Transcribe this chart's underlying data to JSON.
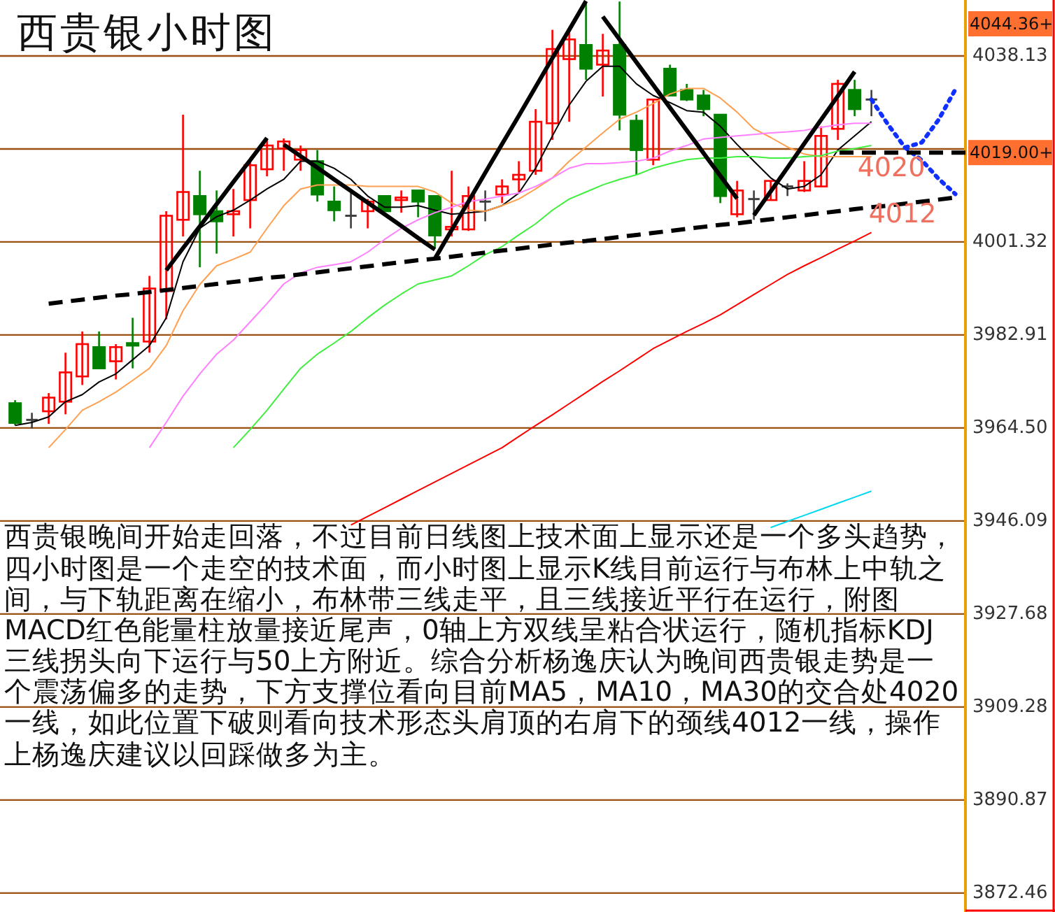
{
  "chart_data": {
    "type": "candlestick",
    "title": "西贵银小时图",
    "categories": [
      null,
      null,
      null,
      null,
      null,
      null,
      null,
      null,
      null,
      null,
      null,
      null,
      null,
      null,
      null,
      null,
      null,
      null,
      null,
      null,
      null,
      null,
      null,
      null,
      null,
      null,
      null,
      null,
      null,
      null,
      null,
      null,
      null,
      null,
      null,
      null,
      null,
      null,
      null,
      null,
      null,
      null,
      null,
      null,
      null,
      null,
      null,
      null,
      null,
      null,
      null,
      null,
      null,
      null,
      null,
      null,
      null
    ],
    "ohlc": [
      [
        3969.4,
        3970.0,
        3965.0,
        3965.5
      ],
      [
        3966.1,
        3967.5,
        3964.4,
        3966.1
      ],
      [
        3967.8,
        3971.4,
        3965.3,
        3970.5
      ],
      [
        3969.7,
        3979.4,
        3967.2,
        3975.5
      ],
      [
        3974.7,
        3983.6,
        3973.0,
        3981.1
      ],
      [
        3980.5,
        3983.6,
        3976.2,
        3976.3
      ],
      [
        3977.7,
        3981.1,
        3974.1,
        3980.5
      ],
      [
        3981.3,
        3986.3,
        3976.3,
        3980.8
      ],
      [
        3981.6,
        3994.6,
        3979.4,
        3992.1
      ],
      [
        3991.6,
        4007.4,
        3986.0,
        4006.5
      ],
      [
        4005.7,
        4026.5,
        4002.4,
        4011.2
      ],
      [
        4010.4,
        4015.4,
        3996.3,
        4006.8
      ],
      [
        4007.4,
        4011.5,
        3999.0,
        4005.4
      ],
      [
        4006.8,
        4011.8,
        4002.4,
        4007.4
      ],
      [
        4009.6,
        4017.9,
        4004.0,
        4016.5
      ],
      [
        4015.7,
        4021.8,
        4014.3,
        4020.4
      ],
      [
        4019.8,
        4021.8,
        4015.4,
        4021.2
      ],
      [
        4017.6,
        4020.4,
        4015.4,
        4019.5
      ],
      [
        4017.3,
        4019.5,
        4009.3,
        4010.7
      ],
      [
        4009.3,
        4012.3,
        4005.4,
        4007.6
      ],
      [
        4006.5,
        4011.0,
        4004.0,
        4006.5
      ],
      [
        4007.4,
        4009.8,
        4004.0,
        4009.3
      ],
      [
        4010.4,
        4010.4,
        4007.4,
        4007.4
      ],
      [
        4009.6,
        4011.5,
        4007.1,
        4010.1
      ],
      [
        4011.5,
        4011.5,
        4006.2,
        4009.3
      ],
      [
        4010.4,
        4010.4,
        4000.2,
        4002.6
      ],
      [
        4003.8,
        4015.4,
        4002.4,
        4004.3
      ],
      [
        4003.8,
        4012.3,
        4003.5,
        4010.4
      ],
      [
        4009.3,
        4011.5,
        4005.4,
        4009.3
      ],
      [
        4010.7,
        4013.7,
        4009.0,
        4012.3
      ],
      [
        4013.7,
        4017.3,
        4011.2,
        4014.6
      ],
      [
        4015.4,
        4027.6,
        4014.6,
        4025.1
      ],
      [
        4024.8,
        4043.3,
        4021.5,
        4039.5
      ],
      [
        4037.5,
        4043.1,
        4025.1,
        4041.4
      ],
      [
        4040.3,
        4048.9,
        4033.4,
        4035.6
      ],
      [
        4036.4,
        4042.5,
        4030.1,
        4039.2
      ],
      [
        4040.3,
        4048.9,
        4023.4,
        4026.5
      ],
      [
        4025.3,
        4026.5,
        4014.6,
        4019.5
      ],
      [
        4017.6,
        4029.5,
        4016.5,
        4029.5
      ],
      [
        4035.6,
        4036.4,
        4030.3,
        4030.3
      ],
      [
        4031.4,
        4032.6,
        4029.2,
        4029.5
      ],
      [
        4030.3,
        4031.4,
        4026.2,
        4027.6
      ],
      [
        4026.5,
        4026.5,
        4009.0,
        4010.4
      ],
      [
        4006.8,
        4013.4,
        4006.2,
        4011.5
      ],
      [
        4009.8,
        4011.5,
        4005.7,
        4009.8
      ],
      [
        4009.6,
        4013.4,
        4009.6,
        4013.4
      ],
      [
        4012.3,
        4012.9,
        4010.4,
        4012.3
      ],
      [
        4011.5,
        4017.3,
        4011.2,
        4013.4
      ],
      [
        4012.3,
        4024.2,
        4012.3,
        4022.3
      ],
      [
        4023.7,
        4033.4,
        4021.5,
        4032.6
      ],
      [
        4031.4,
        4033.4,
        4026.2,
        4027.6
      ],
      [
        4029.5,
        4031.4,
        4026.2,
        4029.5
      ],
      null,
      null,
      null,
      null,
      null
    ],
    "colors": [
      "#008000",
      "#404040",
      "#ff0000",
      "#ff0000",
      "#ff0000",
      "#008000",
      "#ff0000",
      "#008000",
      "#ff0000",
      "#ff0000",
      "#ff0000",
      "#008000",
      "#008000",
      "#ff0000",
      "#ff0000",
      "#ff0000",
      "#ff0000",
      "#ff0000",
      "#008000",
      "#008000",
      "#404040",
      "#ff0000",
      "#008000",
      "#ff0000",
      "#008000",
      "#008000",
      "#ff0000",
      "#ff0000",
      "#404040",
      "#ff0000",
      "#ff0000",
      "#ff0000",
      "#ff0000",
      "#ff0000",
      "#008000",
      "#ff0000",
      "#008000",
      "#008000",
      "#ff0000",
      "#008000",
      "#008000",
      "#008000",
      "#008000",
      "#ff0000",
      "#404040",
      "#ff0000",
      "#404040",
      "#ff0000",
      "#ff0000",
      "#ff0000",
      "#008000",
      "#404040",
      null,
      null,
      null,
      null,
      null
    ],
    "ylim": [
      3868.7,
      4049.2
    ],
    "yticks": [
      4038.13,
      {
        "value": 4019.72,
        "label": null
      },
      4001.32,
      3982.91,
      {
        "value": 3964.5,
        "label": "3964.50"
      },
      3946.09,
      3927.68,
      3909.28,
      3890.87,
      3872.46
    ],
    "tick_labels": "y",
    "grid": "y",
    "ref_lines": [
      {
        "axis": "y",
        "value": 4019.0,
        "label": "4019.00+",
        "color": "#000000",
        "line_style": "dashed"
      }
    ],
    "series": [
      {
        "type": "line",
        "color": "#000000",
        "values": [
          3965.0,
          3965.6,
          3966.7,
          3969.7,
          3971.1,
          3973.6,
          3975.2,
          3978.0,
          3980.8,
          3986.3,
          3997.4,
          4004.0,
          4006.3,
          4007.6,
          4009.6,
          4011.8,
          4013.7,
          4017.3,
          4017.3,
          4015.9,
          4013.7,
          4010.4,
          4008.2,
          4008.2,
          4008.5,
          4007.6,
          4006.8,
          4007.1,
          4007.4,
          4008.5,
          4011.0,
          4015.9,
          4022.3,
          4028.4,
          4033.1,
          4036.1,
          4036.1,
          4032.6,
          4030.3,
          4028.9,
          4027.3,
          4027.0,
          4024.2,
          4020.6,
          4017.3,
          4014.0,
          4011.8,
          4012.3,
          4014.6,
          4019.5,
          4022.3,
          4025.1,
          null,
          null,
          null,
          null,
          null
        ]
      },
      {
        "type": "line",
        "color": "#ffa050",
        "values": [
          null,
          null,
          3960.6,
          3964.2,
          3968.0,
          3969.7,
          3971.6,
          3973.9,
          3976.3,
          3980.8,
          3987.7,
          3992.9,
          3996.6,
          3997.9,
          3999.3,
          4004.0,
          4008.5,
          4011.8,
          4012.6,
          4012.6,
          4012.6,
          4012.3,
          4012.3,
          4012.3,
          4012.3,
          4011.2,
          4009.0,
          4007.6,
          4007.4,
          4008.5,
          4009.8,
          4011.8,
          4014.0,
          4017.3,
          4020.1,
          4022.9,
          4025.6,
          4027.0,
          4028.7,
          4030.6,
          4031.7,
          4031.7,
          4029.8,
          4027.0,
          4023.7,
          4022.0,
          4020.1,
          4018.7,
          4018.2,
          4018.2,
          4018.2,
          4018.2,
          null,
          null,
          null,
          null,
          null
        ]
      },
      {
        "type": "line",
        "color": "#ff80ff",
        "values": [
          null,
          null,
          null,
          null,
          null,
          null,
          null,
          null,
          3960.6,
          3965.6,
          3970.8,
          3975.2,
          3979.1,
          3981.9,
          3985.5,
          3989.1,
          3993.0,
          3995.2,
          3996.3,
          3996.8,
          3997.4,
          3999.3,
          4001.8,
          4004.0,
          4005.7,
          4007.1,
          4008.2,
          4009.3,
          4009.8,
          4010.4,
          4011.0,
          4012.3,
          4014.0,
          4015.9,
          4016.8,
          4016.8,
          4017.0,
          4017.3,
          4017.9,
          4019.3,
          4020.4,
          4021.7,
          4022.0,
          4022.3,
          4022.6,
          4022.9,
          4023.1,
          4023.4,
          4024.0,
          4024.5,
          4024.8,
          4024.8,
          null,
          null,
          null,
          null,
          null
        ]
      },
      {
        "type": "line",
        "color": "#40ee40",
        "values": [
          null,
          null,
          null,
          null,
          null,
          null,
          null,
          null,
          null,
          null,
          null,
          null,
          null,
          3960.6,
          3964.2,
          3968.0,
          3972.2,
          3976.3,
          3979.1,
          3981.3,
          3983.6,
          3986.3,
          3988.8,
          3991.0,
          3993.0,
          3993.8,
          3994.6,
          3996.6,
          3998.8,
          4000.4,
          4002.7,
          4004.9,
          4007.6,
          4009.8,
          4011.2,
          4012.6,
          4013.7,
          4014.6,
          4015.9,
          4016.8,
          4017.6,
          4017.9,
          4017.9,
          4018.2,
          4018.2,
          4017.9,
          4017.9,
          4018.2,
          4018.4,
          4019.3,
          4019.8,
          4020.4,
          null,
          null,
          null,
          null,
          null
        ]
      },
      {
        "type": "line",
        "color": "#ff0000",
        "values": [
          null,
          null,
          null,
          null,
          null,
          null,
          null,
          null,
          null,
          null,
          null,
          null,
          null,
          null,
          null,
          null,
          null,
          null,
          null,
          null,
          3945.3,
          3947.0,
          3948.7,
          3950.4,
          3952.1,
          3953.8,
          3955.5,
          3957.2,
          3958.9,
          3960.6,
          3962.8,
          3965.0,
          3967.1,
          3969.3,
          3971.5,
          3973.7,
          3975.8,
          3978.0,
          3980.2,
          3981.9,
          3983.6,
          3985.2,
          3986.9,
          3988.9,
          3990.9,
          3992.9,
          3994.9,
          3996.6,
          3998.2,
          3999.9,
          4001.5,
          4003.2,
          null,
          null,
          null,
          null,
          null
        ]
      },
      {
        "type": "line",
        "color": "#00d8f0",
        "values": [
          null,
          null,
          null,
          null,
          null,
          null,
          null,
          null,
          null,
          null,
          null,
          null,
          null,
          null,
          null,
          null,
          null,
          null,
          null,
          null,
          null,
          null,
          null,
          null,
          null,
          null,
          null,
          null,
          null,
          null,
          null,
          null,
          null,
          null,
          null,
          null,
          null,
          null,
          null,
          null,
          null,
          null,
          null,
          null,
          null,
          3944.8,
          3946.0,
          3947.2,
          3948.4,
          3949.6,
          3950.8,
          3952.0,
          null,
          null,
          null,
          null,
          null
        ]
      },
      {
        "type": "line",
        "color": "#000000",
        "line_style": "solid",
        "values": [
          null,
          null,
          null,
          null,
          null,
          null,
          null,
          null,
          null,
          3995.7,
          4000.1,
          4004.4,
          4008.8,
          4013.2,
          4017.5,
          4021.9,
          null,
          null,
          null,
          null,
          null,
          null,
          null,
          null,
          null,
          null,
          null,
          null,
          null,
          null,
          null,
          null,
          null,
          null,
          null,
          null,
          null,
          null,
          null,
          null,
          null,
          null,
          null,
          null,
          null,
          null,
          null,
          null,
          null,
          null,
          null,
          null,
          null,
          null,
          null,
          null,
          null
        ]
      },
      {
        "type": "line",
        "color": "#000000",
        "line_style": "solid",
        "values": [
          null,
          null,
          null,
          null,
          null,
          null,
          null,
          null,
          null,
          null,
          null,
          null,
          null,
          null,
          null,
          null,
          4020.6,
          4018.3,
          4016.0,
          4013.7,
          4011.4,
          4009.1,
          4006.8,
          4004.5,
          4002.1,
          3999.8,
          null,
          null,
          null,
          null,
          null,
          null,
          null,
          null,
          null,
          null,
          null,
          null,
          null,
          null,
          null,
          null,
          null,
          null,
          null,
          null,
          null,
          null,
          null,
          null,
          null,
          null,
          null,
          null,
          null,
          null,
          null
        ]
      },
      {
        "type": "line",
        "color": "#000000",
        "line_style": "solid",
        "values": [
          null,
          null,
          null,
          null,
          null,
          null,
          null,
          null,
          null,
          null,
          null,
          null,
          null,
          null,
          null,
          null,
          null,
          null,
          null,
          null,
          null,
          null,
          null,
          null,
          null,
          3998.0,
          4003.7,
          4009.3,
          4015.0,
          4020.7,
          4026.3,
          4032.0,
          4037.7,
          4043.3,
          4049.0,
          null,
          null,
          null,
          null,
          null,
          null,
          null,
          null,
          null,
          null,
          null,
          null,
          null,
          null,
          null,
          null,
          null,
          null,
          null,
          null,
          null,
          null
        ]
      },
      {
        "type": "line",
        "color": "#000000",
        "line_style": "solid",
        "values": [
          null,
          null,
          null,
          null,
          null,
          null,
          null,
          null,
          null,
          null,
          null,
          null,
          null,
          null,
          null,
          null,
          null,
          null,
          null,
          null,
          null,
          null,
          null,
          null,
          null,
          null,
          null,
          null,
          null,
          null,
          null,
          null,
          null,
          null,
          null,
          4045.9,
          4041.4,
          4036.9,
          4032.4,
          4027.9,
          4023.4,
          4018.9,
          4014.4,
          4009.9,
          null,
          null,
          null,
          null,
          null,
          null,
          null,
          null,
          null,
          null,
          null,
          null,
          null
        ]
      },
      {
        "type": "line",
        "color": "#000000",
        "line_style": "solid",
        "values": [
          null,
          null,
          null,
          null,
          null,
          null,
          null,
          null,
          null,
          null,
          null,
          null,
          null,
          null,
          null,
          null,
          null,
          null,
          null,
          null,
          null,
          null,
          null,
          null,
          null,
          null,
          null,
          null,
          null,
          null,
          null,
          null,
          null,
          null,
          null,
          null,
          null,
          null,
          null,
          null,
          null,
          null,
          null,
          null,
          4006.6,
          4011.3,
          4016.0,
          4020.8,
          4025.5,
          4030.2,
          4035.0,
          null,
          null,
          null,
          null,
          null,
          null
        ]
      },
      {
        "type": "line",
        "color": "#000000",
        "line_style": "dashed",
        "values": [
          null,
          null,
          3989.1,
          3989.5,
          3989.9,
          3990.3,
          3990.7,
          3991.0,
          3991.4,
          3991.8,
          3992.2,
          3992.6,
          3993.0,
          3993.4,
          3993.8,
          3994.2,
          3994.5,
          3994.9,
          3995.3,
          3995.7,
          3996.1,
          3996.5,
          3996.9,
          3997.3,
          3997.7,
          3998.0,
          3998.4,
          3998.8,
          3999.2,
          3999.6,
          4000.0,
          4000.4,
          4000.8,
          4001.2,
          4001.5,
          4001.9,
          4002.3,
          4002.7,
          4003.1,
          4003.5,
          4003.9,
          4004.3,
          4004.7,
          4005.0,
          4005.4,
          4005.8,
          4006.2,
          4006.6,
          4007.0,
          4007.4,
          4007.8,
          4008.2,
          4008.5,
          4008.9,
          4009.3,
          4009.7,
          4010.1
        ]
      },
      {
        "type": "line",
        "color": "#1030ff",
        "line_style": "dotted",
        "values": [
          null,
          null,
          null,
          null,
          null,
          null,
          null,
          null,
          null,
          null,
          null,
          null,
          null,
          null,
          null,
          null,
          null,
          null,
          null,
          null,
          null,
          null,
          null,
          null,
          null,
          null,
          null,
          null,
          null,
          null,
          null,
          null,
          null,
          null,
          null,
          null,
          null,
          null,
          null,
          null,
          null,
          null,
          null,
          null,
          null,
          null,
          null,
          null,
          null,
          null,
          null,
          4029.5,
          4024.5,
          4020.0,
          4021.0,
          4025.5,
          4031.5
        ]
      },
      {
        "type": "line",
        "color": "#1030ff",
        "line_style": "dotted",
        "values": [
          null,
          null,
          null,
          null,
          null,
          null,
          null,
          null,
          null,
          null,
          null,
          null,
          null,
          null,
          null,
          null,
          null,
          null,
          null,
          null,
          null,
          null,
          null,
          null,
          null,
          null,
          null,
          null,
          null,
          null,
          null,
          null,
          null,
          null,
          null,
          null,
          null,
          null,
          null,
          null,
          null,
          null,
          null,
          null,
          null,
          null,
          null,
          null,
          null,
          null,
          null,
          null,
          null,
          4020.0,
          4017.5,
          4013.8,
          4010.8
        ]
      }
    ],
    "annotations": [
      "4044.36+",
      "4020",
      "4012",
      "西贵银晚间开始走回落，不过目前日线图上技术面上显示还是一个多头趋势，四小时图是一个走空的技术面，而小时图上显示K线目前运行与布林上中轨之间，与下轨距离在缩小，布林带三线走平，且三线接近平行在运行，附图MACD红色能量柱放量接近尾声，0轴上方双线呈粘合状运行，随机指标KDJ三线拐头向下运行与50上方附近。综合分析杨逸庆认为晚间西贵银走势是一个震荡偏多的走势，下方支撑位看向目前MA5，MA10，MA30的交合处4020一线，如此位置下破则看向技术形态头肩顶的右肩下的颈线4012一线，操作上杨逸庆建议以回踩做多为主。"
    ]
  }
}
